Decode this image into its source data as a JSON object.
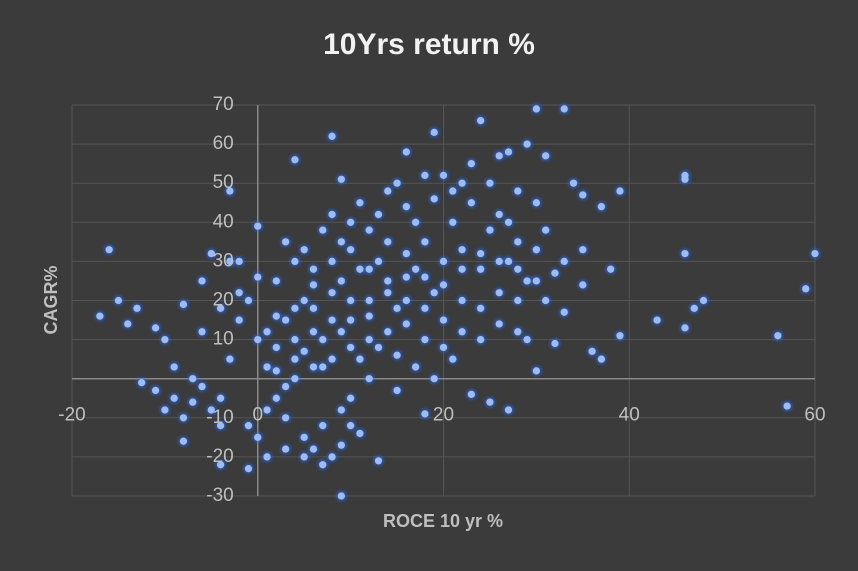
{
  "chart_data": {
    "type": "scatter",
    "title": "10Yrs return %",
    "x_label": "ROCE 10 yr %",
    "y_label": "CAGR%",
    "color": "#9dbcf2",
    "x": [
      -16,
      -17,
      -14,
      -12.5,
      -11,
      -8,
      -4,
      -1,
      9,
      13,
      4,
      8,
      9,
      24,
      30,
      33,
      34,
      39,
      46,
      46,
      46,
      43,
      46,
      47,
      48,
      56,
      57,
      59,
      60,
      37,
      35,
      35,
      35,
      33,
      38,
      39,
      36,
      37,
      32,
      -3,
      0,
      19,
      16,
      27,
      29,
      31,
      0,
      1,
      2,
      3,
      4,
      5,
      6,
      7,
      8,
      9,
      10,
      11,
      12,
      13,
      14,
      15,
      16,
      17,
      18,
      19,
      20,
      21,
      22,
      23,
      24,
      25,
      26,
      27,
      28,
      29,
      2,
      3,
      5,
      6,
      7,
      8,
      9,
      10,
      4,
      6,
      8,
      10,
      12,
      14,
      16,
      18,
      20,
      22,
      24,
      26,
      28,
      30,
      -1,
      -2,
      -3,
      -4,
      -5,
      -6,
      -7,
      -8,
      -9,
      -10,
      -6,
      -5,
      -3,
      -2,
      -1,
      0,
      1,
      2,
      3,
      4,
      5,
      6,
      7,
      8,
      9,
      10,
      11,
      12,
      13,
      14,
      15,
      16,
      17,
      18,
      19,
      20,
      21,
      22,
      23,
      25,
      26,
      27,
      28,
      30,
      31,
      1,
      2,
      3,
      5,
      7,
      9,
      11,
      13,
      15,
      17,
      19,
      21,
      23,
      25,
      27,
      18,
      15,
      12,
      10,
      11,
      9,
      7,
      5,
      3,
      1,
      -4,
      -7,
      -8,
      4,
      6,
      8,
      10,
      12,
      14,
      16,
      18,
      20,
      22,
      24,
      26,
      28,
      30,
      12,
      14,
      16,
      18,
      20,
      22,
      24,
      26,
      28,
      31,
      32,
      33,
      29,
      30,
      8,
      10,
      6,
      4,
      2,
      0,
      -2,
      -4,
      -6,
      -9,
      -10,
      -11,
      -13,
      -15
    ],
    "values": [
      33,
      16,
      14,
      -1,
      -3,
      19,
      -22,
      -23,
      -30,
      -21,
      56,
      62,
      51,
      66,
      69,
      69,
      50,
      48,
      52,
      51,
      32,
      15,
      13,
      18,
      20,
      11,
      -7,
      23,
      32,
      44,
      47,
      33,
      24,
      17,
      28,
      11,
      7,
      5,
      9,
      48,
      39,
      63,
      58,
      58,
      60,
      57,
      10,
      12,
      8,
      15,
      5,
      20,
      18,
      10,
      22,
      25,
      15,
      28,
      20,
      30,
      25,
      18,
      32,
      28,
      35,
      22,
      30,
      40,
      33,
      45,
      28,
      38,
      42,
      30,
      35,
      25,
      -5,
      -10,
      -15,
      -18,
      -12,
      -20,
      -8,
      -5,
      0,
      3,
      5,
      8,
      10,
      12,
      14,
      10,
      15,
      20,
      18,
      22,
      20,
      25,
      20,
      15,
      5,
      -5,
      -8,
      -2,
      0,
      -10,
      3,
      10,
      25,
      32,
      30,
      22,
      -12,
      -15,
      -8,
      25,
      35,
      30,
      33,
      28,
      38,
      42,
      35,
      40,
      45,
      38,
      42,
      48,
      50,
      44,
      40,
      52,
      46,
      52,
      48,
      50,
      55,
      50,
      57,
      40,
      48,
      45,
      38,
      3,
      2,
      -2,
      7,
      3,
      12,
      5,
      8,
      6,
      3,
      0,
      5,
      -4,
      -6,
      -8,
      -9,
      -3,
      0,
      -12,
      -14,
      -17,
      -22,
      -20,
      -18,
      -20,
      -12,
      -6,
      -16,
      18,
      12,
      15,
      20,
      16,
      22,
      20,
      26,
      24,
      28,
      32,
      30,
      28,
      33,
      28,
      35,
      26,
      18,
      8,
      12,
      10,
      14,
      12,
      20,
      27,
      30,
      10,
      2,
      30,
      33,
      24,
      10,
      16,
      26,
      30,
      18,
      12,
      -5,
      -8,
      13,
      18,
      20
    ],
    "xlim": [
      -20,
      60
    ],
    "xticks": [
      -20,
      0,
      20,
      40,
      60
    ],
    "ylim": [
      -30,
      70
    ],
    "yticks": [
      -30,
      -20,
      -10,
      10,
      20,
      30,
      40,
      50,
      60,
      70
    ],
    "grid": true
  }
}
